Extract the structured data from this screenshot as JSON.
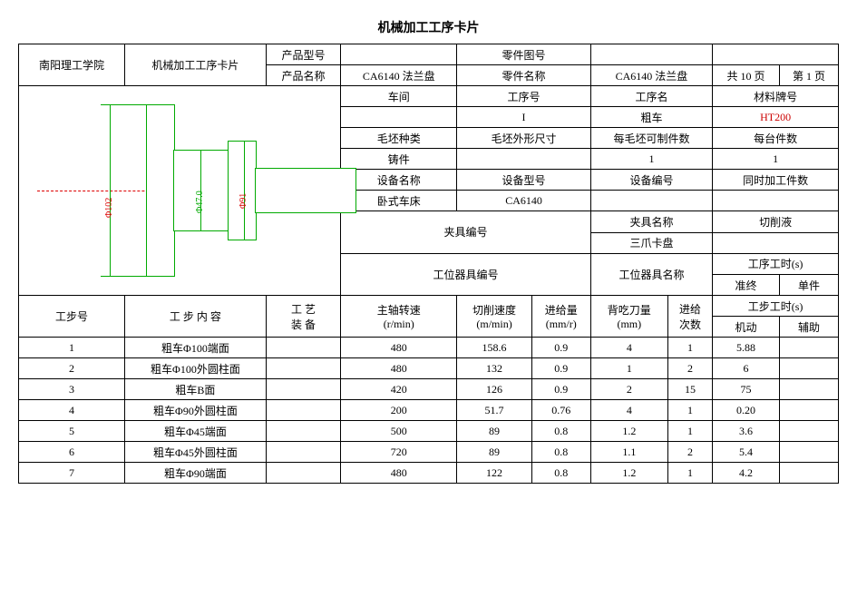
{
  "title": "机械加工工序卡片",
  "header": {
    "org": "南阳理工学院",
    "card": "机械加工工序卡片",
    "prod_model_label": "产品型号",
    "prod_model": "",
    "part_fig_label": "零件图号",
    "part_fig": "",
    "prod_name_label": "产品名称",
    "prod_name": "CA6140 法兰盘",
    "part_name_label": "零件名称",
    "part_name": "CA6140 法兰盘",
    "pages_label_a": "共 10 页",
    "pages_label_b": "第 1 页"
  },
  "info": {
    "workshop_label": "车间",
    "workshop": "",
    "procnum_label": "工序号",
    "procnum": "I",
    "procname_label": "工序名",
    "procname": "粗车",
    "mat_label": "材料牌号",
    "mat": "HT200",
    "blank_type_label": "毛坯种类",
    "blank_type": "铸件",
    "blank_dim_label": "毛坯外形尺寸",
    "blank_dim": "",
    "per_blank_label": "每毛坯可制件数",
    "per_blank": "1",
    "per_machine_label": "每台件数",
    "per_machine": "1",
    "equip_name_label": "设备名称",
    "equip_name": "卧式车床",
    "equip_model_label": "设备型号",
    "equip_model": "CA6140",
    "equip_num_label": "设备编号",
    "equip_num": "",
    "simul_label": "同时加工件数",
    "simul": "",
    "fixture_num_label": "夹具编号",
    "fixture_num": "",
    "fixture_name_label": "夹具名称",
    "fixture_name": "三爪卡盘",
    "coolant_label": "切削液",
    "coolant": "",
    "station_num_label": "工位器具编号",
    "station_num": "",
    "station_name_label": "工位器具名称",
    "station_name": "",
    "proc_time_label": "工序工时(s)",
    "proc_time_prep": "准终",
    "proc_time_unit": "单件",
    "proc_time_prep_v": "",
    "proc_time_unit_v": ""
  },
  "step_headers": {
    "no": "工步号",
    "content": "工 步 内 容",
    "tooling": "工 艺\n装 备",
    "spindle": "主轴转速\n(r/min)",
    "cut_speed": "切削速度\n(m/min)",
    "feed": "进给量\n(mm/r)",
    "depth": "背吃刀量\n(mm)",
    "passes": "进给\n次数",
    "step_time": "工步工时(s)",
    "auto": "机动",
    "aux": "辅助"
  },
  "steps": [
    {
      "no": "1",
      "content": "粗车Φ100端面",
      "tooling": "",
      "spindle": "480",
      "cut": "158.6",
      "feed": "0.9",
      "depth": "4",
      "passes": "1",
      "auto": "5.88",
      "aux": ""
    },
    {
      "no": "2",
      "content": "粗车Φ100外圆柱面",
      "tooling": "",
      "spindle": "480",
      "cut": "132",
      "feed": "0.9",
      "depth": "1",
      "passes": "2",
      "auto": "6",
      "aux": ""
    },
    {
      "no": "3",
      "content": "粗车B面",
      "tooling": "",
      "spindle": "420",
      "cut": "126",
      "feed": "0.9",
      "depth": "2",
      "passes": "15",
      "auto": "75",
      "aux": ""
    },
    {
      "no": "4",
      "content": "粗车Φ90外圆柱面",
      "tooling": "",
      "spindle": "200",
      "cut": "51.7",
      "feed": "0.76",
      "depth": "4",
      "passes": "1",
      "auto": "0.20",
      "aux": ""
    },
    {
      "no": "5",
      "content": "粗车Φ45端面",
      "tooling": "",
      "spindle": "500",
      "cut": "89",
      "feed": "0.8",
      "depth": "1.2",
      "passes": "1",
      "auto": "3.6",
      "aux": ""
    },
    {
      "no": "6",
      "content": "粗车Φ45外圆柱面",
      "tooling": "",
      "spindle": "720",
      "cut": "89",
      "feed": "0.8",
      "depth": "1.1",
      "passes": "2",
      "auto": "5.4",
      "aux": ""
    },
    {
      "no": "7",
      "content": "粗车Φ90端面",
      "tooling": "",
      "spindle": "480",
      "cut": "122",
      "feed": "0.8",
      "depth": "1.2",
      "passes": "1",
      "auto": "4.2",
      "aux": ""
    }
  ],
  "drawing": {
    "dims": [
      "Φ102",
      "Φ47.0",
      "Φ91"
    ]
  }
}
